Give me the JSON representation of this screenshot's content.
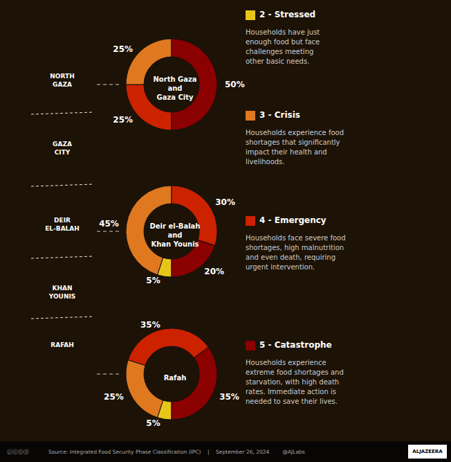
{
  "chart_data": [
    {
      "type": "pie",
      "title": "North Gaza\nand\nGaza City",
      "categories": [
        "4 - Emergency",
        "3 - Crisis",
        "5 - Catastrophe"
      ],
      "values": [
        25,
        25,
        50
      ],
      "value_labels": [
        "25%",
        "25%",
        "50%"
      ],
      "colors": [
        "#CC2200",
        "#E07820",
        "#8B0000"
      ],
      "data_labels": true,
      "annotations": [
        [
          "Households have just\nenough food but face\nchallenges meeting\nother basic needs.",
          "Households experience food\nshortages that significantly\nimpact their health and\nlivelihoods.",
          "Households face severe food\nshortages, high malnutrition\nand even death, requiring\nurgent intervention.",
          "Households experience\nextreme food shortages and\nstarvation, with high death\nrates. Immediate action is\nneeded to save their lives."
        ],
        [
          "NORTH\nGAZA",
          "GAZA\nCITY",
          "DEIR\nEL-BALAH",
          "KHAN\nYOUNIS",
          "RAFAH"
        ],
        [
          "Ⓒⓒⓗⓢ",
          "Source: Integrated Food Security Phase Classification (IPC)    |    September 26, 2024        @AJLabs",
          "ALJAZEERA"
        ]
      ]
    },
    {
      "type": "pie",
      "title": "Deir el-Balah\nand\nKhan Younis",
      "categories": [
        "2 - Stressed",
        "3 - Crisis",
        "4 - Emergency",
        "5 - Catastrophe"
      ],
      "values": [
        5,
        45,
        30,
        20
      ],
      "value_labels": [
        "5%",
        "45%",
        "30%",
        "20%"
      ],
      "colors": [
        "#E8C619",
        "#E07820",
        "#CC2200",
        "#8B0000"
      ],
      "data_labels": true
    },
    {
      "type": "pie",
      "title": "Rafah",
      "categories": [
        "2 - Stressed",
        "3 - Crisis",
        "4 - Emergency",
        "5 - Catastrophe"
      ],
      "values": [
        5,
        25,
        35,
        35
      ],
      "value_labels": [
        "5%",
        "25%",
        "35%",
        "35%"
      ],
      "colors": [
        "#E8C619",
        "#E07820",
        "#CC2200",
        "#8B0000"
      ],
      "data_labels": true
    }
  ]
}
